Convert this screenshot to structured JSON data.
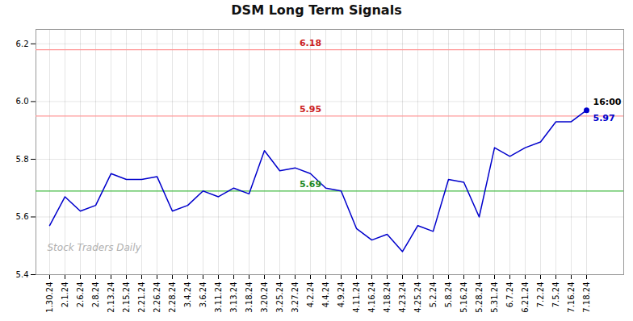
{
  "chart_data": {
    "type": "line",
    "title": "DSM Long Term Signals",
    "categories": [
      "1.30.24",
      "2.1.24",
      "2.6.24",
      "2.8.24",
      "2.13.24",
      "2.15.24",
      "2.21.24",
      "2.26.24",
      "2.28.24",
      "3.4.24",
      "3.6.24",
      "3.11.24",
      "3.13.24",
      "3.18.24",
      "3.20.24",
      "3.25.24",
      "3.27.24",
      "4.2.24",
      "4.4.24",
      "4.9.24",
      "4.11.24",
      "4.16.24",
      "4.18.24",
      "4.23.24",
      "4.25.24",
      "5.2.24",
      "5.8.24",
      "5.16.24",
      "5.28.24",
      "5.31.24",
      "6.7.24",
      "6.21.24",
      "7.2.24",
      "7.5.24",
      "7.16.24",
      "7.18.24"
    ],
    "values": [
      5.57,
      5.67,
      5.62,
      5.64,
      5.75,
      5.73,
      5.73,
      5.74,
      5.62,
      5.64,
      5.69,
      5.67,
      5.7,
      5.68,
      5.83,
      5.76,
      5.77,
      5.75,
      5.7,
      5.69,
      5.56,
      5.52,
      5.54,
      5.48,
      5.57,
      5.55,
      5.73,
      5.72,
      5.6,
      5.84,
      5.81,
      5.84,
      5.86,
      5.93,
      5.93,
      5.97
    ],
    "color": "#0000cc",
    "ylim": [
      5.4,
      6.25
    ],
    "yticks": [
      5.4,
      5.6,
      5.8,
      {
        "value": 6,
        "label": "6.0"
      },
      6.2
    ],
    "grid": true,
    "hlines": [
      {
        "value": 5.69,
        "color": "#44bb44",
        "label_color": "#228822"
      },
      {
        "value": 5.95,
        "color": "#ff9999",
        "label_color": "#cc2222"
      },
      {
        "value": 6.18,
        "color": "#ff9999",
        "label_color": "#cc2222"
      }
    ],
    "last_point": {
      "x": "7.18.24",
      "value": 5.97,
      "label": "16:00",
      "label_color": "#000000",
      "marker": "circle"
    },
    "watermark": {
      "text": "Stock Traders Daily",
      "color": "#b0b0b0"
    }
  }
}
